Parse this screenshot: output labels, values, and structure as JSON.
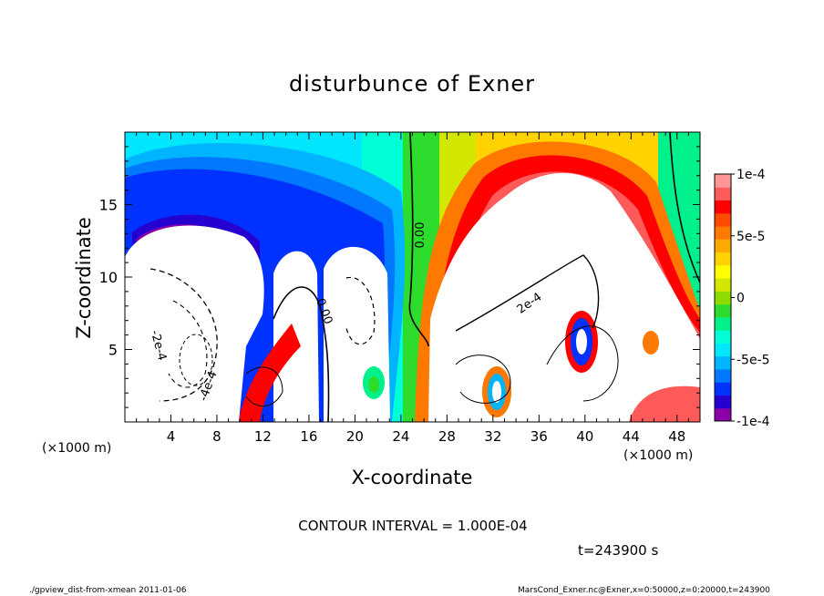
{
  "chart_data": {
    "type": "heatmap",
    "title": "disturbunce of Exner",
    "xlabel": "X-coordinate",
    "ylabel": "Z-coordinate",
    "x_unit": "(×1000 m)",
    "x_ticks": [
      4,
      8,
      12,
      16,
      20,
      24,
      28,
      32,
      36,
      40,
      44,
      48
    ],
    "y_ticks": [
      5,
      10,
      15
    ],
    "xlim": [
      0,
      50
    ],
    "ylim": [
      0,
      20
    ],
    "colorbar": {
      "range": [
        -0.0001,
        0.0001
      ],
      "tick_labels": [
        "1e-4",
        "5e-5",
        "0",
        "-5e-5",
        "-1e-4"
      ],
      "tick_values": [
        0.0001,
        5e-05,
        0,
        -5e-05,
        -0.0001
      ],
      "colors": [
        "#8b00a8",
        "#2500d0",
        "#0032ff",
        "#0078ff",
        "#00b4ff",
        "#00e6ff",
        "#00ffd7",
        "#00f08c",
        "#2ddc2d",
        "#8cdc00",
        "#d2e600",
        "#ffff00",
        "#ffd200",
        "#ffaa00",
        "#ff7800",
        "#ff4b00",
        "#ff0000",
        "#ff5a5a",
        "#ff9696"
      ]
    },
    "contour_labels": [
      "0.00",
      "0.00",
      "2e-4",
      "-2e-4",
      "-4e-4"
    ],
    "contour_interval": "CONTOUR INTERVAL = 1.000E-04",
    "time": "t=243900 s"
  },
  "footer": {
    "left": "./gpview_dist-from-xmean   2011-01-06",
    "right": "MarsCond_Exner.nc@Exner,x=0:50000,z=0:20000,t=243900"
  }
}
